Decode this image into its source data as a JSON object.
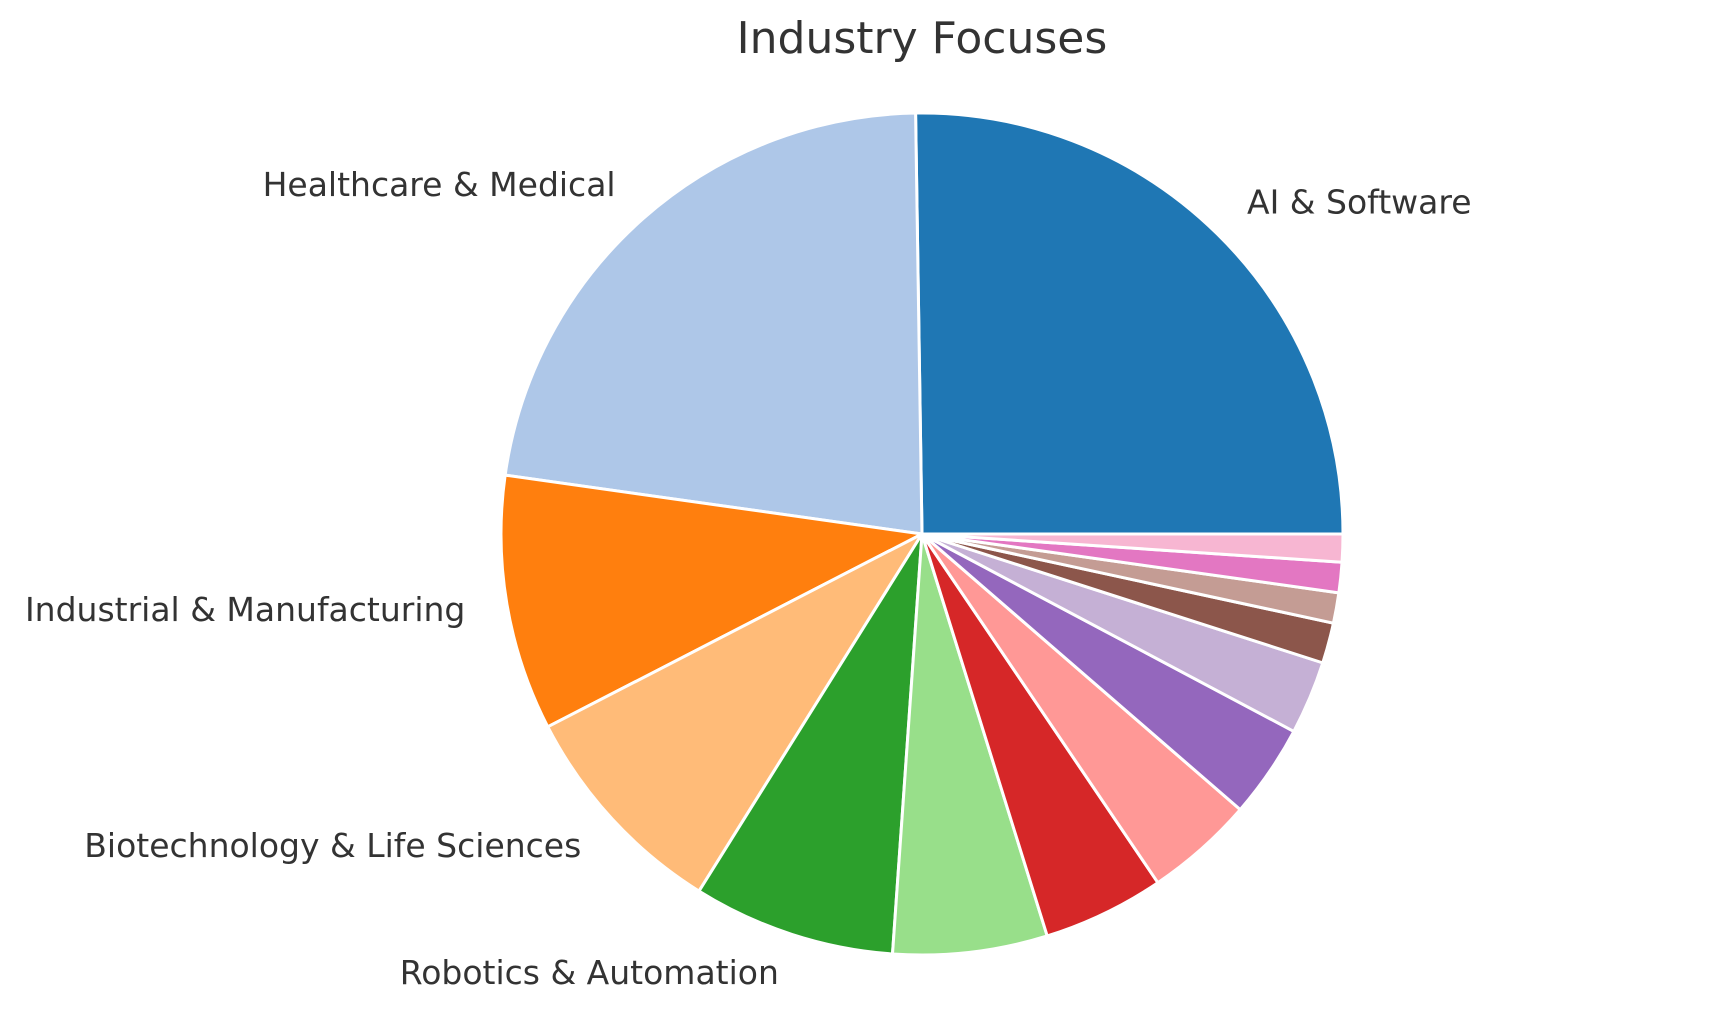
{
  "chart_data": {
    "type": "pie",
    "title": "Industry Focuses",
    "start_angle_deg": 0,
    "direction": "counterclockwise",
    "slices": [
      {
        "label": "AI & Software",
        "value": 26.0,
        "color": "#1f77b4"
      },
      {
        "label": "Healthcare & Medical",
        "value": 23.2,
        "color": "#aec7e8"
      },
      {
        "label": "Industrial & Manufacturing",
        "value": 10.1,
        "color": "#ff7f0e"
      },
      {
        "label": "Biotechnology & Life Sciences",
        "value": 8.8,
        "color": "#ffbb78"
      },
      {
        "label": "Robotics & Automation",
        "value": 8.0,
        "color": "#2ca02c"
      },
      {
        "label": "",
        "value": 6.1,
        "color": "#98df8a"
      },
      {
        "label": "",
        "value": 4.8,
        "color": "#d62728"
      },
      {
        "label": "",
        "value": 4.3,
        "color": "#ff9896"
      },
      {
        "label": "",
        "value": 3.7,
        "color": "#9467bd"
      },
      {
        "label": "",
        "value": 2.9,
        "color": "#c5b0d5"
      },
      {
        "label": "",
        "value": 1.6,
        "color": "#8c564b"
      },
      {
        "label": "",
        "value": 1.2,
        "color": "#c49c94"
      },
      {
        "label": "",
        "value": 1.2,
        "color": "#e377c2"
      },
      {
        "label": "",
        "value": 1.1,
        "color": "#f7b6d2"
      }
    ]
  }
}
